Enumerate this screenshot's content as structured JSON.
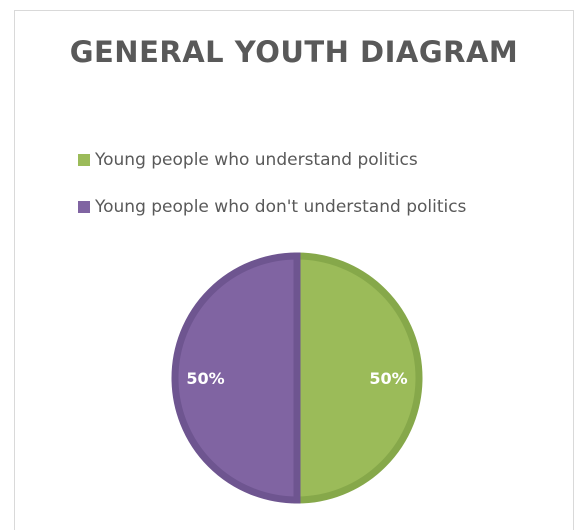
{
  "chart_data": {
    "type": "pie",
    "title": "GENERAL YOUTH DIAGRAM",
    "slices": [
      {
        "label": "Young people who understand politics",
        "value": 50,
        "display": "50%",
        "color": "#9bbb59",
        "border": "#86a84a"
      },
      {
        "label": "Young people who don't understand politics",
        "value": 50,
        "display": "50%",
        "color": "#8064a2",
        "border": "#6e5590"
      }
    ],
    "legend_position": "top"
  }
}
